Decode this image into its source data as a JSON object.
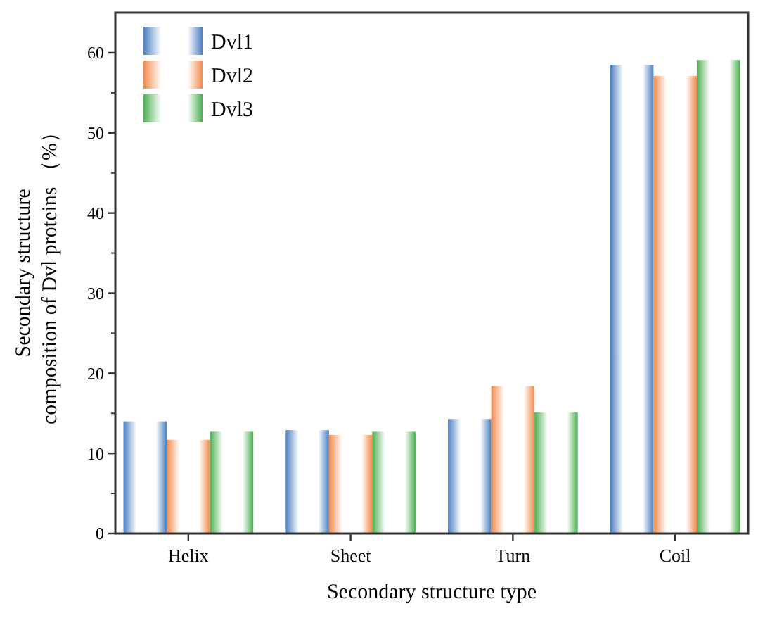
{
  "chart_data": {
    "type": "bar",
    "xlabel": "Secondary structure type",
    "ylabel": "Secondary structure\ncomposition of Dvl proteins （%）",
    "categories": [
      "Helix",
      "Sheet",
      "Turn",
      "Coil"
    ],
    "series": [
      {
        "name": "Dvl1",
        "color": "#4a7fc1",
        "values": [
          14.0,
          12.9,
          14.3,
          58.5
        ]
      },
      {
        "name": "Dvl2",
        "color": "#f08a4b",
        "values": [
          11.7,
          12.3,
          18.4,
          57.1
        ]
      },
      {
        "name": "Dvl3",
        "color": "#4caf50",
        "values": [
          12.7,
          12.7,
          15.1,
          59.1
        ]
      }
    ],
    "ylim": [
      0,
      65
    ],
    "yticks": [
      0,
      10,
      20,
      30,
      40,
      50,
      60
    ],
    "grid": false,
    "legend": "top left"
  }
}
